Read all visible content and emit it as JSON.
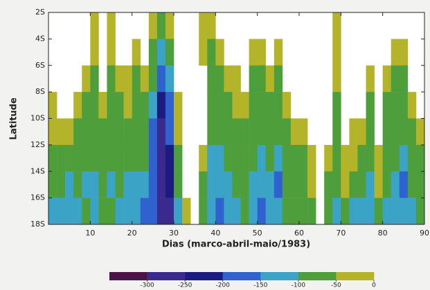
{
  "chart_data": {
    "type": "heatmap",
    "x_label": "Dias (marco-abril-maio/1983)",
    "y_label": "Latitude",
    "xlim": [
      0,
      90
    ],
    "xticks": [
      10,
      20,
      30,
      40,
      50,
      60,
      70,
      80,
      90
    ],
    "ylim": [
      -18,
      -2
    ],
    "yticks": [
      {
        "value": -2,
        "label": "2S"
      },
      {
        "value": -4,
        "label": "4S"
      },
      {
        "value": -6,
        "label": "6S"
      },
      {
        "value": -8,
        "label": "8S"
      },
      {
        "value": -10,
        "label": "10S"
      },
      {
        "value": -12,
        "label": "12S"
      },
      {
        "value": -14,
        "label": "14S"
      },
      {
        "value": -16,
        "label": "16S"
      },
      {
        "value": -18,
        "label": "18S"
      }
    ],
    "x_bins": [
      0,
      2,
      4,
      6,
      8,
      10,
      12,
      14,
      16,
      18,
      20,
      22,
      24,
      26,
      28,
      30,
      32,
      34,
      36,
      38,
      40,
      42,
      44,
      46,
      48,
      50,
      52,
      54,
      56,
      58,
      60,
      62,
      64,
      66,
      68,
      70,
      72,
      74,
      76,
      78,
      80,
      82,
      84,
      86,
      88,
      90
    ],
    "y_bins": [
      -2,
      -4,
      -6,
      -8,
      -10,
      -12,
      -14,
      -16,
      -18
    ],
    "values": [
      [
        null,
        null,
        null,
        -25,
        -25,
        -75,
        -75,
        -125
      ],
      [
        null,
        null,
        null,
        null,
        -25,
        -75,
        -75,
        -125
      ],
      [
        null,
        null,
        null,
        null,
        -25,
        -75,
        -125,
        -125
      ],
      [
        null,
        null,
        null,
        -25,
        -75,
        -75,
        -75,
        -125
      ],
      [
        null,
        null,
        -25,
        -75,
        -75,
        -75,
        -125,
        -75
      ],
      [
        -25,
        -25,
        -75,
        -75,
        -75,
        -75,
        -125,
        -125
      ],
      [
        null,
        null,
        null,
        -25,
        -75,
        -75,
        -75,
        -75
      ],
      [
        -25,
        -25,
        -75,
        -75,
        -75,
        -75,
        -125,
        -75
      ],
      [
        null,
        null,
        -25,
        -75,
        -75,
        -75,
        -75,
        -125
      ],
      [
        null,
        null,
        -25,
        -25,
        -75,
        -75,
        -125,
        -125
      ],
      [
        null,
        -25,
        -75,
        -75,
        -75,
        -75,
        -125,
        -125
      ],
      [
        null,
        null,
        -25,
        -75,
        -75,
        -75,
        -125,
        -175
      ],
      [
        -25,
        -75,
        -75,
        -125,
        -175,
        -175,
        -175,
        -175
      ],
      [
        -75,
        -125,
        -175,
        -225,
        -275,
        -275,
        -275,
        -275
      ],
      [
        -25,
        -75,
        -125,
        -175,
        -175,
        -225,
        -225,
        -275
      ],
      [
        null,
        null,
        null,
        -25,
        -25,
        -75,
        -75,
        -125
      ],
      [
        null,
        null,
        null,
        null,
        null,
        null,
        null,
        -25
      ],
      [
        null,
        null,
        null,
        null,
        null,
        null,
        null,
        null
      ],
      [
        -25,
        -25,
        null,
        null,
        null,
        -25,
        -75,
        -75
      ],
      [
        -25,
        -75,
        -75,
        -75,
        -75,
        -125,
        -125,
        -125
      ],
      [
        null,
        -25,
        -75,
        -75,
        -75,
        -125,
        -125,
        -175
      ],
      [
        null,
        null,
        -25,
        -75,
        -75,
        -75,
        -125,
        -125
      ],
      [
        null,
        null,
        -25,
        -25,
        -75,
        -75,
        -75,
        -125
      ],
      [
        null,
        null,
        null,
        -25,
        -75,
        -75,
        -75,
        -75
      ],
      [
        null,
        -25,
        -75,
        -75,
        -75,
        -75,
        -125,
        -125
      ],
      [
        null,
        -25,
        -75,
        -75,
        -75,
        -125,
        -125,
        -175
      ],
      [
        null,
        null,
        -25,
        -75,
        -75,
        -75,
        -125,
        -125
      ],
      [
        null,
        -25,
        -75,
        -75,
        -75,
        -125,
        -175,
        -125
      ],
      [
        null,
        null,
        null,
        -25,
        -75,
        -75,
        -75,
        -75
      ],
      [
        null,
        null,
        null,
        null,
        -25,
        -75,
        -75,
        -75
      ],
      [
        null,
        null,
        null,
        null,
        -25,
        -75,
        -75,
        -75
      ],
      [
        null,
        null,
        null,
        null,
        null,
        -25,
        -25,
        -75
      ],
      [
        null,
        null,
        null,
        null,
        null,
        null,
        null,
        null
      ],
      [
        null,
        null,
        null,
        null,
        null,
        -25,
        -75,
        -75
      ],
      [
        -25,
        -25,
        -25,
        -75,
        -75,
        -75,
        -75,
        -125
      ],
      [
        null,
        null,
        null,
        null,
        null,
        -25,
        -25,
        -75
      ],
      [
        null,
        null,
        null,
        null,
        -25,
        -25,
        -75,
        -125
      ],
      [
        null,
        null,
        null,
        null,
        -25,
        -75,
        -75,
        -125
      ],
      [
        null,
        null,
        -25,
        -75,
        -75,
        -75,
        -125,
        -125
      ],
      [
        null,
        null,
        null,
        null,
        null,
        -25,
        -25,
        -75
      ],
      [
        null,
        null,
        -25,
        -75,
        -75,
        -75,
        -75,
        -125
      ],
      [
        null,
        -25,
        -75,
        -75,
        -75,
        -75,
        -125,
        -125
      ],
      [
        null,
        -25,
        -75,
        -75,
        -75,
        -125,
        -175,
        -125
      ],
      [
        null,
        null,
        null,
        -25,
        -75,
        -75,
        -75,
        -125
      ],
      [
        null,
        null,
        null,
        null,
        -25,
        -75,
        -75,
        -75
      ]
    ],
    "levels": [
      -350,
      -300,
      -250,
      -200,
      -150,
      -100,
      -50,
      0
    ],
    "colors": [
      "#4a1446",
      "#3a2a8e",
      "#1c1c80",
      "#2f62cf",
      "#3aa3c6",
      "#4f9e3c",
      "#b3b42a"
    ],
    "colorbar_ticks": [
      -300,
      -250,
      -200,
      -150,
      -100,
      -50,
      0
    ]
  }
}
